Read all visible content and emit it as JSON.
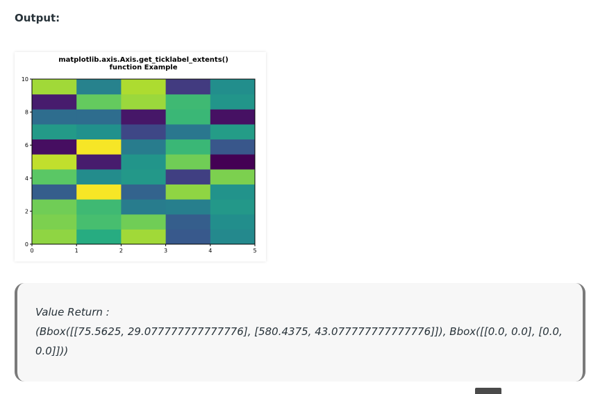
{
  "output_label": "Output:",
  "chart_data": {
    "type": "heatmap",
    "title": "matplotlib.axis.Axis.get_ticklabel_extents()\nfunction Example",
    "title_lines": [
      "matplotlib.axis.Axis.get_ticklabel_extents()",
      "function Example"
    ],
    "xlabel": "",
    "ylabel": "",
    "xlim": [
      0,
      5
    ],
    "ylim": [
      0,
      10
    ],
    "x_ticks": [
      "0",
      "1",
      "2",
      "3",
      "4",
      "5"
    ],
    "y_ticks": [
      "0",
      "2",
      "4",
      "6",
      "8",
      "10"
    ],
    "colormap": "viridis",
    "grid": false,
    "rows_bottom_to_top": [
      [
        0.83,
        0.62,
        0.86,
        0.28,
        0.47
      ],
      [
        0.8,
        0.7,
        0.78,
        0.3,
        0.49
      ],
      [
        0.78,
        0.68,
        0.42,
        0.43,
        0.53
      ],
      [
        0.3,
        0.99,
        0.32,
        0.83,
        0.51
      ],
      [
        0.74,
        0.48,
        0.53,
        0.2,
        0.8
      ],
      [
        0.91,
        0.1,
        0.52,
        0.78,
        0.0
      ],
      [
        0.05,
        0.99,
        0.42,
        0.67,
        0.27
      ],
      [
        0.54,
        0.5,
        0.22,
        0.4,
        0.55
      ],
      [
        0.36,
        0.36,
        0.08,
        0.67,
        0.06
      ],
      [
        0.1,
        0.76,
        0.85,
        0.68,
        0.52
      ],
      [
        0.86,
        0.44,
        0.88,
        0.19,
        0.49
      ]
    ]
  },
  "result": {
    "line1": "Value Return :",
    "line2": "(Bbox([[75.5625, 29.077777777777776], [580.4375, 43.077777777777776]]), Bbox([[0.0, 0.0], [0.0,",
    "line3": "0.0]]))"
  }
}
